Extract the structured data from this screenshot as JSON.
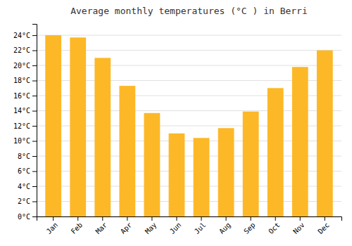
{
  "chart_data": {
    "type": "bar",
    "title": "Average monthly temperatures (°C ) in Berri",
    "categories": [
      "Jan",
      "Feb",
      "Mar",
      "Apr",
      "May",
      "Jun",
      "Jul",
      "Aug",
      "Sep",
      "Oct",
      "Nov",
      "Dec"
    ],
    "values": [
      24.0,
      23.7,
      21.0,
      17.3,
      13.7,
      11.0,
      10.4,
      11.7,
      13.9,
      17.0,
      19.8,
      22.0
    ],
    "color": "#FDB827",
    "ylim": [
      0,
      25.5
    ],
    "yticks": [
      {
        "value": 0,
        "label": "0°C"
      },
      {
        "value": 2,
        "label": "2°C"
      },
      {
        "value": 4,
        "label": "4°C"
      },
      {
        "value": 6,
        "label": "6°C"
      },
      {
        "value": 8,
        "label": "8°C"
      },
      {
        "value": 10,
        "label": "10°C"
      },
      {
        "value": 12,
        "label": "12°C"
      },
      {
        "value": 14,
        "label": "14°C"
      },
      {
        "value": 16,
        "label": "16°C"
      },
      {
        "value": 18,
        "label": "18°C"
      },
      {
        "value": 20,
        "label": "20°C"
      },
      {
        "value": 22,
        "label": "22°C"
      },
      {
        "value": 24,
        "label": "24°C"
      }
    ],
    "grid": true
  }
}
